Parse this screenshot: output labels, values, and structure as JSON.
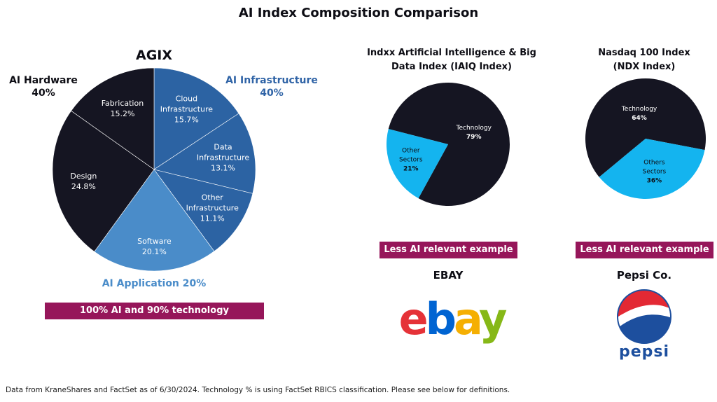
{
  "title": "AI Index Composition Comparison",
  "footnote": "Data from KraneShares and FactSet as of 6/30/2024. Technology % is using FactSet RBICS classification. Please see below for definitions.",
  "agix": {
    "group_labels": {
      "hardware": [
        "AI Hardware",
        "40%"
      ],
      "infrastructure": [
        "AI Infrastructure",
        "40%"
      ],
      "application": "AI Application 20%"
    },
    "banner": "100% AI and 90% technology"
  },
  "iaiq": {
    "banner": "Less AI relevant example",
    "example_title": "EBAY"
  },
  "ndx": {
    "banner": "Less AI relevant example",
    "example_title": "Pepsi Co."
  },
  "logos": {
    "ebay": [
      "e",
      "b",
      "a",
      "y"
    ],
    "pepsi": "pepsi"
  },
  "colors": {
    "dark": "#151522",
    "mid_blue": "#2c63a3",
    "light_blue": "#4a8cc9",
    "cyan": "#14b4ef",
    "banner": "#96165a"
  },
  "chart_data": [
    {
      "type": "pie",
      "title": "AGIX",
      "slices": [
        {
          "label": "Cloud Infrastructure",
          "value": 15.7,
          "display": "15.7%",
          "color": "#2c63a3"
        },
        {
          "label": "Data Infrastructure",
          "value": 13.1,
          "display": "13.1%",
          "color": "#2c63a3"
        },
        {
          "label": "Other Infrastructure",
          "value": 11.1,
          "display": "11.1%",
          "color": "#2c63a3"
        },
        {
          "label": "Software",
          "value": 20.1,
          "display": "20.1%",
          "color": "#4a8cc9"
        },
        {
          "label": "Design",
          "value": 24.8,
          "display": "24.8%",
          "color": "#151522"
        },
        {
          "label": "Fabrication",
          "value": 15.2,
          "display": "15.2%",
          "color": "#151522"
        }
      ]
    },
    {
      "type": "pie",
      "title": "Indxx Artificial Intelligence & Big Data Index (IAIQ Index)",
      "title_lines": [
        "Indxx Artificial Intelligence & Big",
        "Data Index (IAIQ Index)"
      ],
      "slices": [
        {
          "label": "Technology",
          "value": 79,
          "display": "79%",
          "color": "#151522"
        },
        {
          "label": "Other Sectors",
          "value": 21,
          "display": "21%",
          "color": "#14b4ef"
        }
      ]
    },
    {
      "type": "pie",
      "title": "Nasdaq 100 Index (NDX Index)",
      "title_lines": [
        "Nasdaq 100 Index",
        "(NDX Index)"
      ],
      "slices": [
        {
          "label": "Technology",
          "value": 64,
          "display": "64%",
          "color": "#151522"
        },
        {
          "label": "Others Sectors",
          "value": 36,
          "display": "36%",
          "color": "#14b4ef"
        }
      ]
    }
  ]
}
